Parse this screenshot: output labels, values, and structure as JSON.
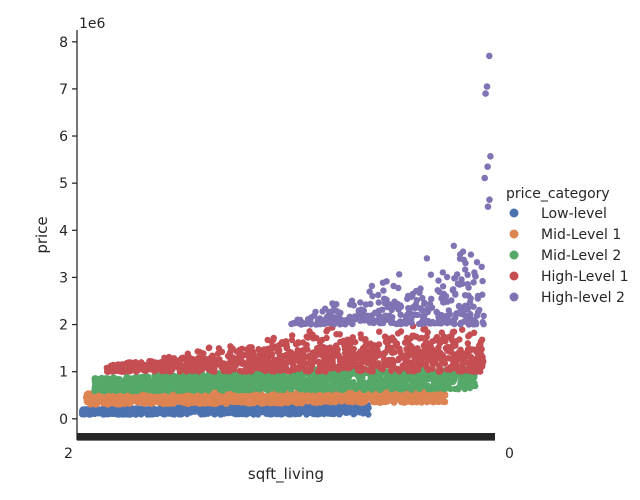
{
  "chart_data": {
    "type": "scatter",
    "xlabel": "sqft_living",
    "ylabel": "price",
    "y_offset_label": "1e6",
    "y_unit_multiplier": 1000000,
    "ylim": [
      -0.45,
      8.25
    ],
    "y_ticks": [
      0,
      1,
      2,
      3,
      4,
      5,
      6,
      7,
      8
    ],
    "x_tick_label_fragments": [
      "2",
      "0"
    ],
    "legend": {
      "title": "price_category",
      "placement": "right"
    },
    "colors": {
      "Low-level": "#4c72b0",
      "Mid-Level 1": "#dd8452",
      "Mid-Level 2": "#55a868",
      "High-Level 1": "#c44e52",
      "High-level 2": "#8172b3"
    },
    "series": [
      {
        "name": "Low-level",
        "price_range": [
          0.08,
          0.32
        ]
      },
      {
        "name": "Mid-Level 1",
        "price_range": [
          0.32,
          0.6
        ]
      },
      {
        "name": "Mid-Level 2",
        "price_range": [
          0.6,
          1.0
        ]
      },
      {
        "name": "High-Level 1",
        "price_range": [
          1.0,
          2.0
        ]
      },
      {
        "name": "High-level 2",
        "price_range": [
          2.0,
          7.7
        ]
      }
    ],
    "notable_points": [
      {
        "series": "High-level 2",
        "price": 7.7
      },
      {
        "series": "High-level 2",
        "price": 7.05
      },
      {
        "series": "High-level 2",
        "price": 6.9
      },
      {
        "series": "High-level 2",
        "price": 5.57
      },
      {
        "series": "High-level 2",
        "price": 5.35
      },
      {
        "series": "High-level 2",
        "price": 5.11
      },
      {
        "series": "High-level 2",
        "price": 4.65
      },
      {
        "series": "High-level 2",
        "price": 4.5
      }
    ]
  }
}
